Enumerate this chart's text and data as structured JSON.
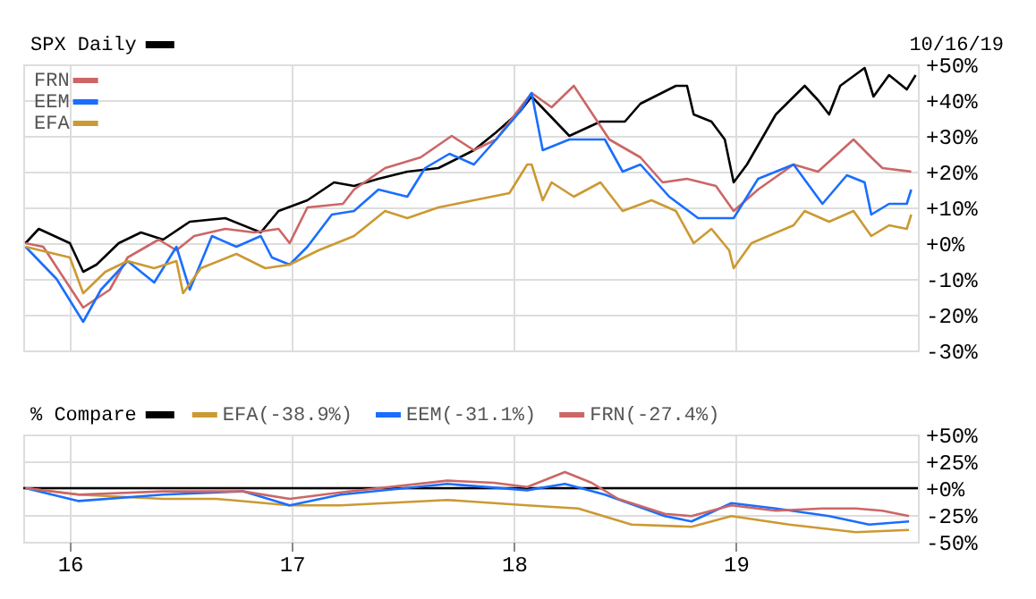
{
  "chart_data": [
    {
      "type": "line",
      "title": "SPX Daily",
      "annotations": [
        "10/16/19"
      ],
      "legend": "top left",
      "grid": true,
      "tick_labels": "y",
      "xlim": [
        15.79,
        19.82
      ],
      "xticks": [
        16,
        17,
        18,
        19
      ],
      "ylim": [
        -30,
        50
      ],
      "yticks": [
        {
          "value": 50,
          "label": "+50%"
        },
        {
          "value": 40,
          "label": "+40%"
        },
        {
          "value": 30,
          "label": "+30%"
        },
        {
          "value": 20,
          "label": "+20%"
        },
        {
          "value": 10,
          "label": "+10%"
        },
        {
          "value": 0,
          "label": "+0%"
        },
        {
          "value": -10,
          "label": "-10%"
        },
        {
          "value": -20,
          "label": "-20%"
        },
        {
          "value": -30,
          "label": "-30%"
        }
      ],
      "series": [
        {
          "color": "#000000",
          "x": [
            15.8,
            15.86,
            16.0,
            16.06,
            16.12,
            16.22,
            16.32,
            16.42,
            16.54,
            16.7,
            16.86,
            16.94,
            17.07,
            17.19,
            17.28,
            17.39,
            17.52,
            17.66,
            17.82,
            17.92,
            18.03,
            18.08,
            18.25,
            18.39,
            18.5,
            18.57,
            18.73,
            18.78,
            18.81,
            18.89,
            18.95,
            18.99,
            19.05,
            19.18,
            19.31,
            19.37,
            19.42,
            19.47,
            19.58,
            19.62,
            19.69,
            19.77,
            19.81
          ],
          "values": [
            0,
            4,
            0,
            -8,
            -6,
            0,
            3,
            1,
            6,
            7,
            3,
            9,
            12,
            17,
            16,
            18,
            20,
            21,
            26,
            31,
            37,
            41,
            30,
            34,
            34,
            39,
            44,
            44,
            36,
            34,
            29,
            17,
            22,
            36,
            44,
            40,
            36,
            44,
            49,
            41,
            47,
            43,
            47
          ]
        },
        {
          "name": "FRN",
          "color": "#cc6666",
          "x": [
            15.8,
            15.88,
            16.06,
            16.18,
            16.26,
            16.4,
            16.48,
            16.56,
            16.7,
            16.83,
            16.94,
            16.99,
            17.07,
            17.23,
            17.28,
            17.42,
            17.58,
            17.72,
            17.82,
            17.92,
            18.03,
            18.08,
            18.17,
            18.27,
            18.43,
            18.57,
            18.67,
            18.78,
            18.91,
            18.99,
            19.1,
            19.26,
            19.37,
            19.53,
            19.61,
            19.66,
            19.79
          ],
          "values": [
            0,
            -1,
            -18,
            -13,
            -4,
            1,
            -2,
            2,
            4,
            3,
            4,
            0,
            10,
            11,
            15,
            21,
            24,
            30,
            26,
            29,
            38,
            42,
            38,
            44,
            29,
            24,
            17,
            18,
            16,
            9,
            15,
            22,
            20,
            29,
            24,
            21,
            20
          ]
        },
        {
          "name": "EEM",
          "color": "#1a6eff",
          "x": [
            15.8,
            15.94,
            16.06,
            16.14,
            16.26,
            16.38,
            16.48,
            16.54,
            16.64,
            16.75,
            16.86,
            16.91,
            16.99,
            17.07,
            17.18,
            17.28,
            17.39,
            17.52,
            17.6,
            17.71,
            17.82,
            17.92,
            18.03,
            18.08,
            18.13,
            18.25,
            18.41,
            18.49,
            18.57,
            18.7,
            18.83,
            18.99,
            19.1,
            19.26,
            19.39,
            19.5,
            19.58,
            19.61,
            19.69,
            19.77,
            19.79
          ],
          "values": [
            -1,
            -10,
            -22,
            -13,
            -5,
            -11,
            -1,
            -13,
            2,
            -1,
            2,
            -4,
            -6,
            -1,
            8,
            9,
            15,
            13,
            21,
            25,
            22,
            29,
            37,
            42,
            26,
            29,
            29,
            20,
            22,
            13,
            7,
            7,
            18,
            22,
            11,
            19,
            17,
            8,
            11,
            11,
            15
          ]
        },
        {
          "name": "EFA",
          "color": "#cc9933",
          "x": [
            15.8,
            16.0,
            16.06,
            16.16,
            16.26,
            16.38,
            16.48,
            16.51,
            16.59,
            16.75,
            16.88,
            16.99,
            17.12,
            17.28,
            17.42,
            17.52,
            17.66,
            17.82,
            17.98,
            18.06,
            18.08,
            18.13,
            18.17,
            18.27,
            18.39,
            18.49,
            18.62,
            18.73,
            18.81,
            18.89,
            18.97,
            18.99,
            19.07,
            19.26,
            19.31,
            19.42,
            19.53,
            19.61,
            19.69,
            19.77,
            19.79
          ],
          "values": [
            -1,
            -4,
            -14,
            -8,
            -5,
            -7,
            -5,
            -14,
            -7,
            -3,
            -7,
            -6,
            -2,
            2,
            9,
            7,
            10,
            12,
            14,
            22,
            22,
            12,
            17,
            13,
            17,
            9,
            12,
            9,
            0,
            4,
            -2,
            -7,
            0,
            5,
            9,
            6,
            9,
            2,
            5,
            4,
            8
          ]
        }
      ]
    },
    {
      "type": "line",
      "title": "% Compare",
      "legend": "top",
      "grid": true,
      "xlim": [
        15.79,
        19.82
      ],
      "xticks": [
        16,
        17,
        18,
        19
      ],
      "ylim": [
        -50,
        50
      ],
      "yticks": [
        {
          "value": 50,
          "label": "+50%"
        },
        {
          "value": 25,
          "label": "+25%"
        },
        {
          "value": 0,
          "label": "+0%"
        },
        {
          "value": -25,
          "label": "-25%"
        },
        {
          "value": -50,
          "label": "-50%"
        }
      ],
      "series": [
        {
          "color": "#000000",
          "x": [
            15.79,
            19.82
          ],
          "values": [
            0,
            0
          ]
        },
        {
          "name": "EFA(-38.9%)",
          "color": "#cc9933",
          "x": [
            15.8,
            16.04,
            16.42,
            16.66,
            16.99,
            17.22,
            17.7,
            18.06,
            18.29,
            18.53,
            18.8,
            18.98,
            19.24,
            19.54,
            19.78
          ],
          "values": [
            0,
            -6,
            -10,
            -10,
            -16,
            -16,
            -11,
            -16,
            -19,
            -34,
            -36,
            -26,
            -34,
            -41,
            -39
          ]
        },
        {
          "name": "EEM(-31.1%)",
          "color": "#1a6eff",
          "x": [
            15.8,
            16.04,
            16.42,
            16.78,
            16.99,
            17.22,
            17.7,
            18.06,
            18.23,
            18.41,
            18.68,
            18.8,
            18.98,
            19.18,
            19.42,
            19.6,
            19.78
          ],
          "values": [
            0,
            -12,
            -6,
            -3,
            -16,
            -6,
            4,
            -2,
            4,
            -6,
            -26,
            -31,
            -14,
            -19,
            -26,
            -34,
            -31
          ]
        },
        {
          "name": "FRN(-27.4%)",
          "color": "#cc6666",
          "x": [
            15.8,
            16.04,
            16.42,
            16.78,
            16.99,
            17.22,
            17.7,
            17.91,
            18.06,
            18.23,
            18.35,
            18.47,
            18.68,
            18.8,
            18.98,
            19.18,
            19.39,
            19.54,
            19.66,
            19.78
          ],
          "values": [
            0,
            -6,
            -3,
            -3,
            -10,
            -4,
            7,
            5,
            1,
            15,
            5,
            -10,
            -24,
            -26,
            -16,
            -21,
            -19,
            -19,
            -21,
            -26
          ]
        }
      ]
    }
  ]
}
